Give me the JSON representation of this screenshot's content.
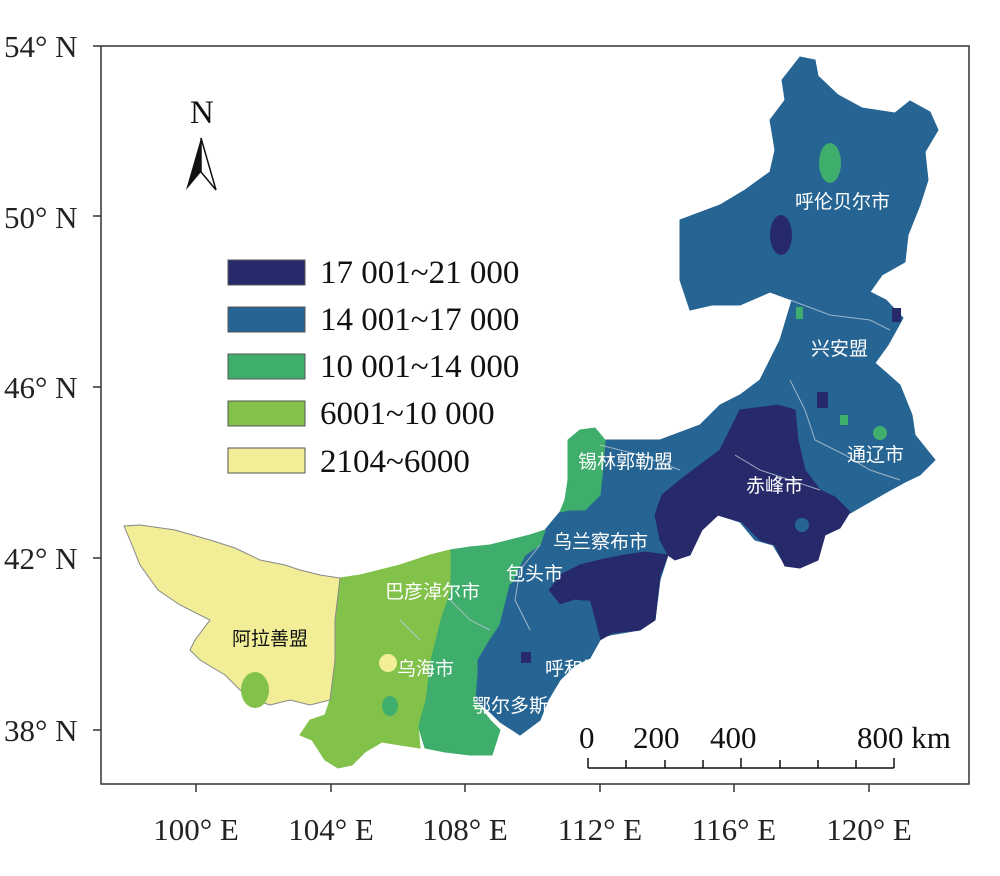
{
  "lat_ticks": [
    "54° N",
    "50° N",
    "46° N",
    "42° N",
    "38° N"
  ],
  "lon_ticks": [
    "100° E",
    "104° E",
    "108° E",
    "112° E",
    "116° E",
    "120° E"
  ],
  "north_label": "N",
  "legend": [
    {
      "label": "17 001~21 000",
      "color": "#272a6a"
    },
    {
      "label": "14 001~17 000",
      "color": "#266593"
    },
    {
      "label": "10 001~14 000",
      "color": "#3fad6b"
    },
    {
      "label": "6001~10 000",
      "color": "#82c24a"
    },
    {
      "label": "2104~6000",
      "color": "#f1ee97"
    }
  ],
  "regions": [
    {
      "name": "呼伦贝尔市"
    },
    {
      "name": "兴安盟"
    },
    {
      "name": "通辽市"
    },
    {
      "name": "赤峰市"
    },
    {
      "name": "锡林郭勒盟"
    },
    {
      "name": "乌兰察布市"
    },
    {
      "name": "包头市"
    },
    {
      "name": "巴彦淖尔市"
    },
    {
      "name": "阿拉善盟"
    },
    {
      "name": "乌海市"
    },
    {
      "name": "呼和浩特市"
    },
    {
      "name": "鄂尔多斯市"
    }
  ],
  "scale_bar": {
    "labels": [
      "0",
      "200",
      "400",
      "800 km"
    ]
  }
}
